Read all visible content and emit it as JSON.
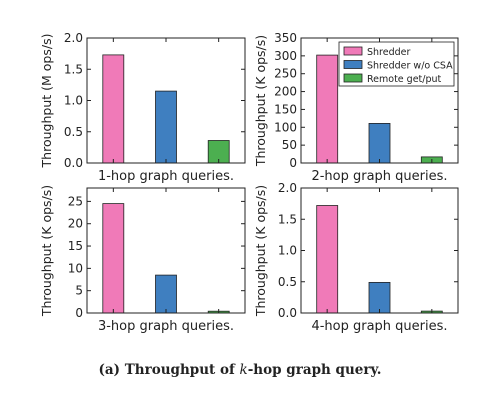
{
  "caption": {
    "label": "(a)",
    "text_before": "Throughput of",
    "variable": "k",
    "text_after": "-hop graph query."
  },
  "colors": {
    "Shredder": "#f07ab8",
    "Shredder w/o CSA": "#3f7fc0",
    "Remote get/put": "#4caf50"
  },
  "chart_data": [
    {
      "type": "bar",
      "xlabel": "1-hop graph queries.",
      "ylabel": "Throughput (M ops/s)",
      "ylim": [
        0,
        2.0
      ],
      "yticks": [
        "0.0",
        "0.5",
        "1.0",
        "1.5",
        "2.0"
      ],
      "ytick_values": [
        0,
        0.5,
        1.0,
        1.5,
        2.0
      ],
      "series": [
        {
          "name": "Shredder",
          "value": 1.73
        },
        {
          "name": "Shredder w/o CSA",
          "value": 1.15
        },
        {
          "name": "Remote get/put",
          "value": 0.36
        }
      ]
    },
    {
      "type": "bar",
      "xlabel": "2-hop graph queries.",
      "ylabel": "Throughput (K ops/s)",
      "ylim": [
        0,
        350
      ],
      "yticks": [
        "0",
        "50",
        "100",
        "150",
        "200",
        "250",
        "300",
        "350"
      ],
      "ytick_values": [
        0,
        50,
        100,
        150,
        200,
        250,
        300,
        350
      ],
      "legend": {
        "placement": "top-right",
        "entries": [
          "Shredder",
          "Shredder w/o CSA",
          "Remote get/put"
        ]
      },
      "series": [
        {
          "name": "Shredder",
          "value": 302
        },
        {
          "name": "Shredder w/o CSA",
          "value": 111
        },
        {
          "name": "Remote get/put",
          "value": 17
        }
      ]
    },
    {
      "type": "bar",
      "xlabel": "3-hop graph queries.",
      "ylabel": "Throughput (K ops/s)",
      "ylim": [
        0,
        28
      ],
      "yticks": [
        "0",
        "5",
        "10",
        "15",
        "20",
        "25"
      ],
      "ytick_values": [
        0,
        5,
        10,
        15,
        20,
        25
      ],
      "series": [
        {
          "name": "Shredder",
          "value": 24.5
        },
        {
          "name": "Shredder w/o CSA",
          "value": 8.5
        },
        {
          "name": "Remote get/put",
          "value": 0.4
        }
      ]
    },
    {
      "type": "bar",
      "xlabel": "4-hop graph queries.",
      "ylabel": "Throughput (K ops/s)",
      "ylim": [
        0,
        2.0
      ],
      "yticks": [
        "0.0",
        "0.5",
        "1.0",
        "1.5",
        "2.0"
      ],
      "ytick_values": [
        0,
        0.5,
        1.0,
        1.5,
        2.0
      ],
      "series": [
        {
          "name": "Shredder",
          "value": 1.72
        },
        {
          "name": "Shredder w/o CSA",
          "value": 0.49
        },
        {
          "name": "Remote get/put",
          "value": 0.03
        }
      ]
    }
  ]
}
